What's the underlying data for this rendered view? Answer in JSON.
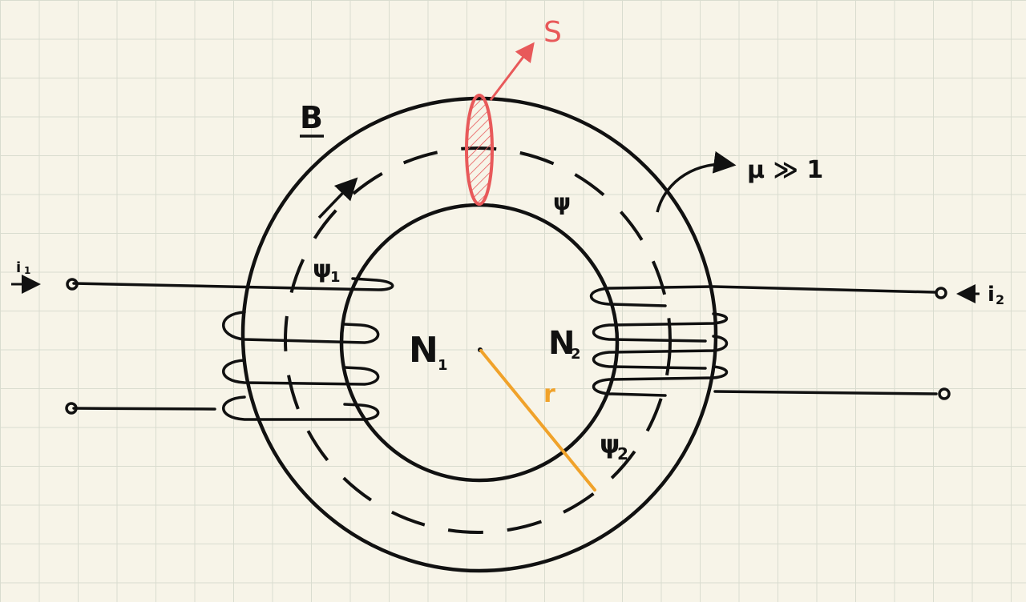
{
  "labels": {
    "B": "B",
    "S": "S",
    "mu": "μ ≫ 1",
    "psi": "ψ",
    "psi1": "ψ",
    "psi1_sub": "1",
    "psi2": "ψ",
    "psi2_sub": "2",
    "N1": "N",
    "N1_sub": "1",
    "N2": "N",
    "N2_sub": "2",
    "r": "r",
    "i1": "i",
    "i1_sub": "1",
    "i2": "i",
    "i2_sub": "2"
  },
  "colors": {
    "ink": "#111111",
    "cross_section": "#e8595a",
    "cross_section_fill": "#f4b3b0",
    "radius": "#f0a22a",
    "paper": "#f7f4e8",
    "grid": "#d9dccf"
  }
}
